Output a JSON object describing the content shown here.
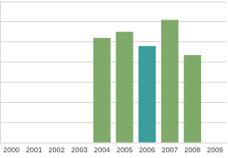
{
  "chart_data": {
    "type": "bar",
    "categories": [
      "2000",
      "2001",
      "2002",
      "2003",
      "2004",
      "2005",
      "2006",
      "2007",
      "2008",
      "2009"
    ],
    "values": [
      null,
      null,
      null,
      null,
      5.2,
      5.5,
      4.8,
      6.1,
      4.35,
      null
    ],
    "colors": [
      "#7faa6a",
      "#7faa6a",
      "#7faa6a",
      "#7faa6a",
      "#7faa6a",
      "#7faa6a",
      "#3a9e9a",
      "#7faa6a",
      "#7faa6a",
      "#7faa6a"
    ],
    "ylim": [
      0,
      7
    ],
    "yticks": [
      0,
      1,
      2,
      3,
      4,
      5,
      6,
      7
    ],
    "grid": true,
    "tick_labels": "x"
  }
}
